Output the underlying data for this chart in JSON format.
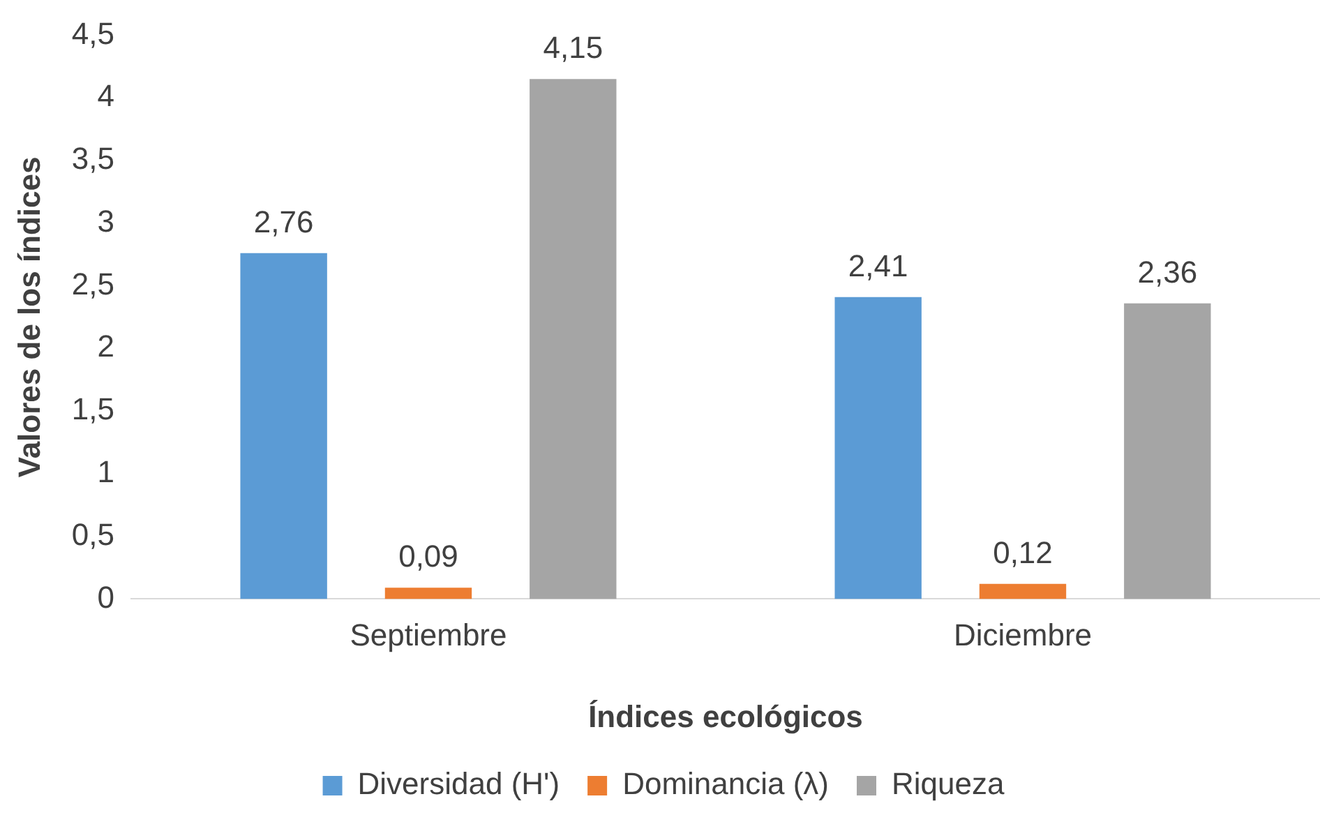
{
  "chart_data": {
    "type": "bar",
    "xlabel": "Índices ecológicos",
    "ylabel": "Valores de los índices",
    "categories": [
      "Septiembre",
      "Diciembre"
    ],
    "series": [
      {
        "name": "Diversidad (H')",
        "color": "#5b9bd5",
        "values": [
          2.76,
          2.41
        ],
        "value_labels": [
          "2,76",
          "2,41"
        ]
      },
      {
        "name": "Dominancia (λ)",
        "color": "#ed7d31",
        "values": [
          0.09,
          0.12
        ],
        "value_labels": [
          "0,09",
          "0,12"
        ]
      },
      {
        "name": "Riqueza",
        "color": "#a5a5a5",
        "values": [
          4.15,
          2.36
        ],
        "value_labels": [
          "4,15",
          "2,36"
        ]
      }
    ],
    "ylim": [
      0,
      4.5
    ],
    "yticks": [
      0,
      {
        "value": 0.5,
        "label": "0,5"
      },
      1,
      {
        "value": 1.5,
        "label": "1,5"
      },
      2,
      {
        "value": 2.5,
        "label": "2,5"
      },
      3,
      {
        "value": 3.5,
        "label": "3,5"
      },
      4,
      {
        "value": 4.5,
        "label": "4,5"
      }
    ],
    "grid": false,
    "legend": "bottom"
  }
}
